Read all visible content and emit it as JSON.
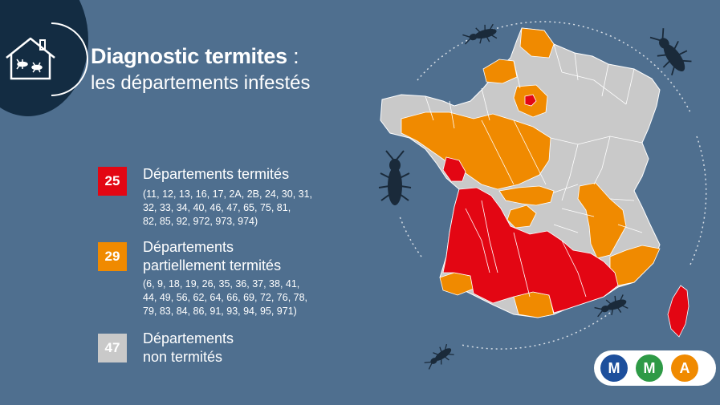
{
  "header": {
    "title": "Diagnostic termites",
    "title_colon": ":",
    "subtitle": "les départements infestés"
  },
  "legend": [
    {
      "count": "25",
      "color": "#e30613",
      "title_lines": [
        "Départements termités"
      ],
      "list_lines": [
        "(11, 12, 13, 16, 17, 2A, 2B, 24, 30, 31,",
        "32, 33, 34, 40, 46, 47, 65, 75, 81,",
        "82, 85, 92, 972, 973, 974)"
      ]
    },
    {
      "count": "29",
      "color": "#f08a00",
      "title_lines": [
        "Départements",
        "partiellement termités"
      ],
      "list_lines": [
        "(6, 9, 18, 19, 26, 35, 36, 37, 38, 41,",
        "44, 49, 56, 62, 64, 66, 69, 72, 76, 78,",
        "79, 83, 84, 86, 91, 93, 94, 95, 971)"
      ]
    },
    {
      "count": "47",
      "color": "#c9c9c9",
      "title_lines": [
        "Départements",
        "non termités"
      ],
      "list_lines": []
    }
  ],
  "map_colors": {
    "termite": "#e30613",
    "partial": "#f08a00",
    "none": "#c9c9c9",
    "border": "#ffffff",
    "insect": "#1a2a3a"
  },
  "logo": {
    "letters": [
      "M",
      "M",
      "A"
    ],
    "colors": [
      "#1d4f9c",
      "#2e9a46",
      "#f08a00"
    ]
  }
}
